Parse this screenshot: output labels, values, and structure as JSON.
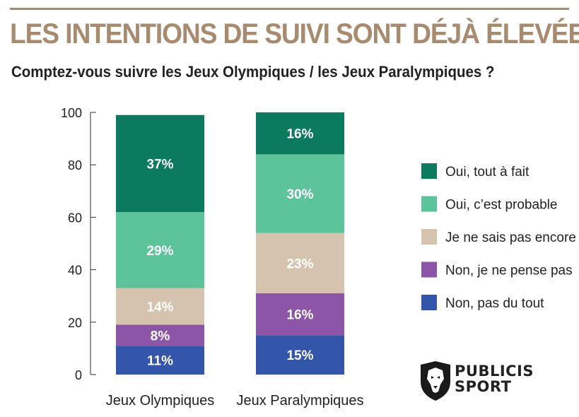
{
  "title": "LES INTENTIONS DE SUIVI SONT DÉJÀ ÉLEVÉES",
  "subtitle": "Comptez-vous suivre les Jeux Olympiques / les Jeux Paralympiques ?",
  "logo": {
    "line1": "PUBLICIS",
    "line2": "SPORT",
    "icon": "lion-head-icon"
  },
  "colors": {
    "title": "#a88a6e",
    "Oui, tout à fait": "#0b7a5f",
    "Oui, c'est probable": "#5cc39a",
    "Je ne sais pas encore": "#d6c3ae",
    "Non, je ne pense pas": "#8d55a6",
    "Non, pas du tout": "#3355aa"
  },
  "chart_data": {
    "type": "bar",
    "stacked": true,
    "categories": [
      "Jeux Olympiques",
      "Jeux Paralympiques"
    ],
    "ylim": [
      0,
      100
    ],
    "yticks": [
      0,
      20,
      40,
      60,
      80,
      100
    ],
    "legend_position": "right",
    "series": [
      {
        "name": "Non, pas du tout",
        "values": [
          11,
          15
        ],
        "labels": [
          "11%",
          "15%"
        ]
      },
      {
        "name": "Non, je ne pense pas",
        "values": [
          8,
          16
        ],
        "labels": [
          "8%",
          "16%"
        ]
      },
      {
        "name": "Je ne sais pas encore",
        "values": [
          14,
          23
        ],
        "labels": [
          "14%",
          "23%"
        ]
      },
      {
        "name": "Oui, c’est probable",
        "values": [
          29,
          30
        ],
        "labels": [
          "29%",
          "30%"
        ]
      },
      {
        "name": "Oui, tout à fait",
        "values": [
          37,
          16
        ],
        "labels": [
          "37%",
          "16%"
        ]
      }
    ],
    "legend_order": [
      "Oui, tout à fait",
      "Oui, c’est probable",
      "Je ne sais pas encore",
      "Non, je ne pense pas",
      "Non, pas du tout"
    ],
    "series_colors": [
      "#3355aa",
      "#8d55a6",
      "#d6c3ae",
      "#5cc39a",
      "#0b7a5f"
    ]
  }
}
